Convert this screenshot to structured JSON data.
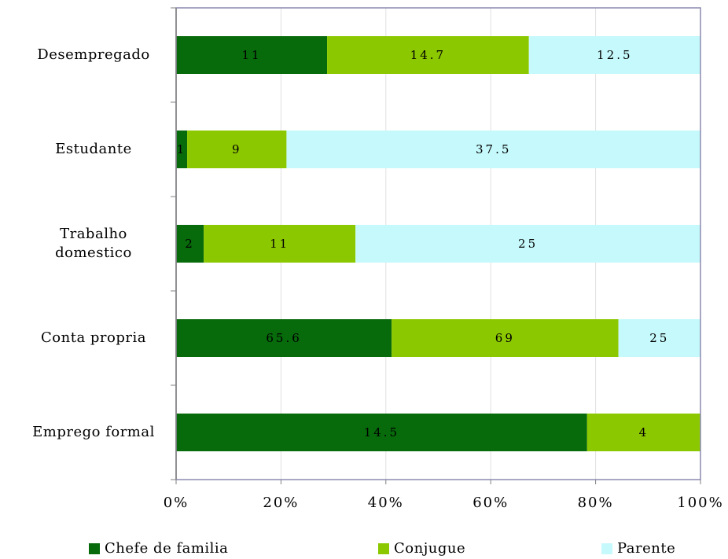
{
  "chart_data": {
    "type": "bar",
    "stacked": "percent",
    "orientation": "horizontal",
    "categories": [
      "Desempregado",
      "Estudante",
      "Trabalho\ndomestico",
      "Conta propria",
      "Emprego formal"
    ],
    "series": [
      {
        "name": "Chefe de familia",
        "color": "#076a0b",
        "values": [
          11,
          1,
          2,
          65.6,
          14.5
        ]
      },
      {
        "name": "Conjugue",
        "color": "#8cc800",
        "values": [
          14.7,
          9,
          11,
          69,
          4
        ]
      },
      {
        "name": "Parente",
        "color": "#c6f9fb",
        "values": [
          12.5,
          37.5,
          25,
          25,
          null
        ]
      }
    ],
    "xlim": [
      0,
      100
    ],
    "xticks": [
      {
        "value": 0,
        "label": "0%"
      },
      {
        "value": 20,
        "label": "20%"
      },
      {
        "value": 40,
        "label": "40%"
      },
      {
        "value": 60,
        "label": "60%"
      },
      {
        "value": 80,
        "label": "80%"
      },
      {
        "value": 100,
        "label": "100%"
      }
    ],
    "grid": true,
    "legend": "bottom"
  }
}
